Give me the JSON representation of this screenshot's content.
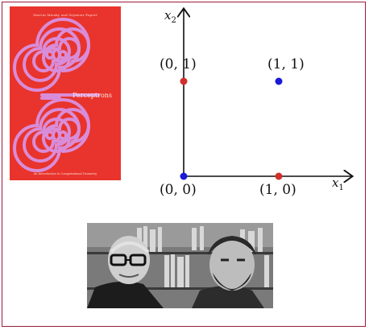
{
  "book": {
    "subtitle": "Marvin Minsky and Seymour Papert",
    "title": "Perceptrons",
    "footer": "An Introduction to Computational Geometry",
    "background_color": "#e8342c",
    "spiral_color": "#d98cd8"
  },
  "plot": {
    "x_axis_label": "x",
    "x_axis_sub": "1",
    "y_axis_label": "x",
    "y_axis_sub": "2",
    "points": [
      {
        "label": "(0, 0)",
        "x": 0,
        "y": 0,
        "color": "#1a1ad6"
      },
      {
        "label": "(1, 0)",
        "x": 1,
        "y": 0,
        "color": "#d0302c"
      },
      {
        "label": "(0, 1)",
        "x": 0,
        "y": 1,
        "color": "#d0302c"
      },
      {
        "label": "(1, 1)",
        "x": 1,
        "y": 1,
        "color": "#1a1ad6"
      }
    ]
  },
  "photo": {
    "description_icon": "portrait-photo-icon"
  },
  "colors": {
    "frame_border": "#9a1c3c",
    "axis": "#111111"
  }
}
